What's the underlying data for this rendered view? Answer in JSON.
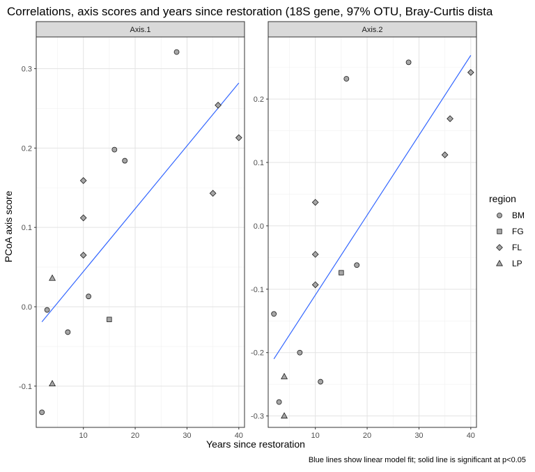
{
  "chart_data": {
    "type": "scatter",
    "title": "Correlations, axis scores and years since restoration (18S gene, 97% OTU, Bray-Curtis dista",
    "xlabel": "Years since restoration",
    "ylabel": "PCoA axis score",
    "caption": "Blue lines show linear model fit; solid line is significant at p<0.05",
    "legend": {
      "title": "region",
      "position": "right",
      "entries": [
        {
          "label": "BM",
          "shape": "circle"
        },
        {
          "label": "FG",
          "shape": "square"
        },
        {
          "label": "FL",
          "shape": "diamond"
        },
        {
          "label": "LP",
          "shape": "triangle"
        }
      ]
    },
    "colors": {
      "fit_line": "#3366ff",
      "point_fill": "#a6a6a6",
      "point_stroke": "#1a1a1a",
      "strip_fill": "#d9d9d9"
    },
    "grid": true,
    "panels": [
      {
        "strip": "Axis.1",
        "xlim": [
          0.9,
          41.1
        ],
        "ylim": [
          -0.152,
          0.34
        ],
        "xticks": [
          10,
          20,
          30,
          40
        ],
        "xticklabels": [
          "10",
          "20",
          "30",
          "40"
        ],
        "yticks": [
          -0.1,
          0.0,
          0.1,
          0.2,
          0.3
        ],
        "yticklabels": [
          "-0.1",
          "0.0",
          "0.1",
          "0.2",
          "0.3"
        ],
        "fit": {
          "x": [
            2,
            40
          ],
          "y": [
            -0.019,
            0.282
          ]
        },
        "points": [
          {
            "x": 28,
            "y": 0.321,
            "region": "BM"
          },
          {
            "x": 16,
            "y": 0.198,
            "region": "BM"
          },
          {
            "x": 18,
            "y": 0.184,
            "region": "BM"
          },
          {
            "x": 11,
            "y": 0.013,
            "region": "BM"
          },
          {
            "x": 3,
            "y": -0.004,
            "region": "BM"
          },
          {
            "x": 7,
            "y": -0.032,
            "region": "BM"
          },
          {
            "x": 2,
            "y": -0.133,
            "region": "BM"
          },
          {
            "x": 15,
            "y": -0.016,
            "region": "FG"
          },
          {
            "x": 36,
            "y": 0.254,
            "region": "FL"
          },
          {
            "x": 40,
            "y": 0.213,
            "region": "FL"
          },
          {
            "x": 10,
            "y": 0.159,
            "region": "FL"
          },
          {
            "x": 35,
            "y": 0.143,
            "region": "FL"
          },
          {
            "x": 10,
            "y": 0.112,
            "region": "FL"
          },
          {
            "x": 10,
            "y": 0.065,
            "region": "FL"
          },
          {
            "x": 4,
            "y": 0.036,
            "region": "LP"
          },
          {
            "x": 4,
            "y": -0.097,
            "region": "LP"
          }
        ]
      },
      {
        "strip": "Axis.2",
        "xlim": [
          0.9,
          41.1
        ],
        "ylim": [
          -0.318,
          0.298
        ],
        "xticks": [
          10,
          20,
          30,
          40
        ],
        "xticklabels": [
          "10",
          "20",
          "30",
          "40"
        ],
        "yticks": [
          -0.3,
          -0.2,
          -0.1,
          0.0,
          0.1,
          0.2
        ],
        "yticklabels": [
          "-0.3",
          "-0.2",
          "-0.1",
          "0.0",
          "0.1",
          "0.2"
        ],
        "fit": {
          "x": [
            2,
            40
          ],
          "y": [
            -0.21,
            0.269
          ]
        },
        "points": [
          {
            "x": 28,
            "y": 0.258,
            "region": "BM"
          },
          {
            "x": 16,
            "y": 0.232,
            "region": "BM"
          },
          {
            "x": 18,
            "y": -0.062,
            "region": "BM"
          },
          {
            "x": 2,
            "y": -0.139,
            "region": "BM"
          },
          {
            "x": 7,
            "y": -0.2,
            "region": "BM"
          },
          {
            "x": 11,
            "y": -0.246,
            "region": "BM"
          },
          {
            "x": 3,
            "y": -0.278,
            "region": "BM"
          },
          {
            "x": 15,
            "y": -0.074,
            "region": "FG"
          },
          {
            "x": 40,
            "y": 0.242,
            "region": "FL"
          },
          {
            "x": 36,
            "y": 0.169,
            "region": "FL"
          },
          {
            "x": 35,
            "y": 0.112,
            "region": "FL"
          },
          {
            "x": 10,
            "y": 0.037,
            "region": "FL"
          },
          {
            "x": 10,
            "y": -0.045,
            "region": "FL"
          },
          {
            "x": 10,
            "y": -0.093,
            "region": "FL"
          },
          {
            "x": 4,
            "y": -0.238,
            "region": "LP"
          },
          {
            "x": 4,
            "y": -0.3,
            "region": "LP"
          }
        ]
      }
    ]
  }
}
